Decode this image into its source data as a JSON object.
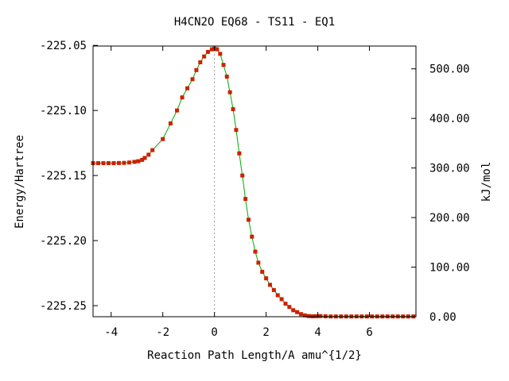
{
  "chart_data": {
    "type": "line",
    "title": "H4CN2O   EQ68 - TS11 - EQ1",
    "xlabel": "Reaction Path Length/A amu^{1/2}",
    "ylabel": "Energy/Hartree",
    "y2label": "kJ/mol",
    "xlim": [
      -4.7,
      7.8
    ],
    "ylim": [
      -225.2585,
      -225.0505
    ],
    "y2lim": [
      0.0,
      546.0
    ],
    "xticks": [
      -4,
      -2,
      0,
      2,
      4,
      6
    ],
    "xtick_labels": [
      "-4",
      "-2",
      "0",
      "2",
      "4",
      "6"
    ],
    "yticks": [
      -225.25,
      -225.2,
      -225.15,
      -225.1,
      -225.05
    ],
    "ytick_labels": [
      "-225.25",
      "-225.20",
      "-225.15",
      "-225.10",
      "-225.05"
    ],
    "y2ticks": [
      0,
      100,
      200,
      300,
      400,
      500
    ],
    "y2tick_labels": [
      "0.00",
      "100.00",
      "200.00",
      "300.00",
      "400.00",
      "500.00"
    ],
    "ts_x": 0,
    "grid": false,
    "legend": "none",
    "line_color": "#00aa00",
    "marker_color": "#cc2200",
    "vline_color": "#999999",
    "series": [
      {
        "x": [
          -4.7,
          -4.5,
          -4.3,
          -4.1,
          -3.9,
          -3.7,
          -3.5,
          -3.3,
          -3.1,
          -2.95,
          -2.8,
          -2.7,
          -2.55,
          -2.4,
          -2.0,
          -1.7,
          -1.45,
          -1.25,
          -1.05,
          -0.85,
          -0.7,
          -0.55,
          -0.4,
          -0.25,
          -0.1,
          0.0,
          0.1,
          0.22,
          0.35,
          0.48,
          0.6,
          0.72,
          0.84,
          0.96,
          1.08,
          1.2,
          1.32,
          1.45,
          1.58,
          1.7,
          1.85,
          2.0,
          2.15,
          2.3,
          2.45,
          2.6,
          2.75,
          2.9,
          3.05,
          3.2,
          3.35,
          3.5,
          3.65,
          3.8,
          3.95,
          4.1,
          4.3,
          4.5,
          4.7,
          4.9,
          5.1,
          5.3,
          5.5,
          5.7,
          5.9,
          6.1,
          6.3,
          6.5,
          6.7,
          6.9,
          7.1,
          7.3,
          7.5,
          7.7
        ],
        "y": [
          -225.1405,
          -225.1405,
          -225.1405,
          -225.1405,
          -225.1405,
          -225.1404,
          -225.1403,
          -225.14,
          -225.1395,
          -225.139,
          -225.138,
          -225.1365,
          -225.134,
          -225.1305,
          -225.122,
          -225.11,
          -225.1,
          -225.09,
          -225.083,
          -225.076,
          -225.069,
          -225.063,
          -225.0585,
          -225.055,
          -225.053,
          -225.0525,
          -225.053,
          -225.0565,
          -225.065,
          -225.074,
          -225.086,
          -225.099,
          -225.115,
          -225.133,
          -225.15,
          -225.168,
          -225.184,
          -225.197,
          -225.2085,
          -225.217,
          -225.224,
          -225.229,
          -225.234,
          -225.238,
          -225.242,
          -225.245,
          -225.2485,
          -225.251,
          -225.2535,
          -225.255,
          -225.2565,
          -225.2575,
          -225.258,
          -225.2582,
          -225.2581,
          -225.258,
          -225.2582,
          -225.2583,
          -225.2583,
          -225.2583,
          -225.2583,
          -225.2583,
          -225.2583,
          -225.2583,
          -225.2583,
          -225.2583,
          -225.2583,
          -225.2583,
          -225.2583,
          -225.2583,
          -225.2583,
          -225.2583,
          -225.2583,
          -225.2583
        ]
      }
    ]
  }
}
